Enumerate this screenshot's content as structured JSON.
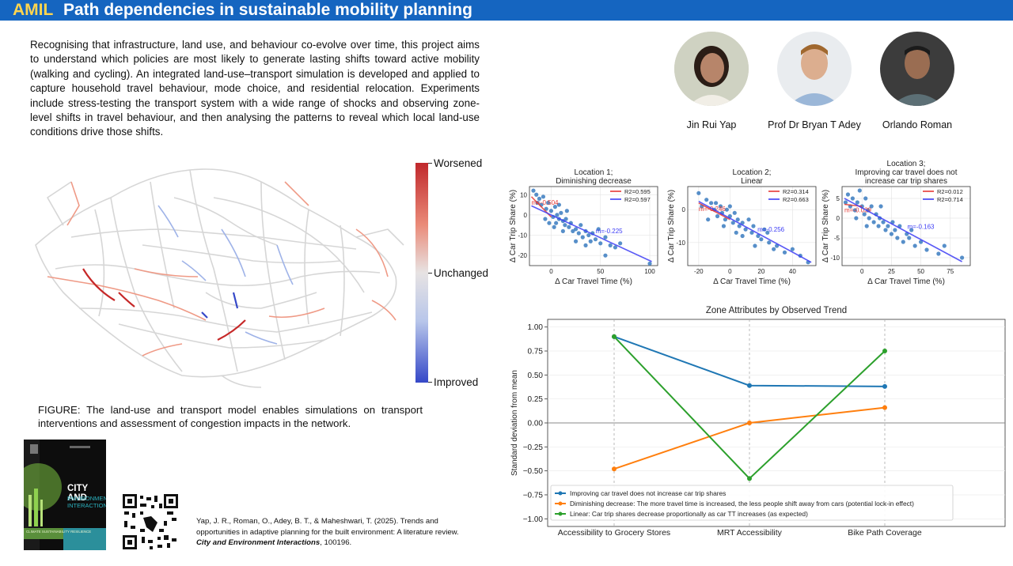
{
  "header": {
    "brand": "AMIL",
    "title": "Path dependencies in sustainable mobility planning"
  },
  "intro": "Recognising that infrastructure, land use, and behaviour co-evolve over time, this project aims to understand which policies are most likely to generate lasting shifts toward active mobility (walking and cycling). An integrated land-use–transport simulation is developed and applied to capture household travel behaviour, mode choice, and residential relocation. Experiments include stress-testing the transport system with a wide range of shocks and observing zone-level shifts in travel behaviour, and then analysing the patterns to reveal which local land-use conditions drive those shifts.",
  "people": [
    {
      "name": "Jin Rui Yap"
    },
    {
      "name": "Prof Dr Bryan T Adey"
    },
    {
      "name": "Orlando Roman"
    }
  ],
  "map_legend": {
    "top": "Worsened",
    "middle": "Unchanged",
    "bottom": "Improved"
  },
  "caption": "FIGURE: The land-use and transport model enables simulations on transport interventions and assessment of congestion impacts in the network.",
  "cover": {
    "title1": "CITY AND",
    "title2": "ENVIRONMENT",
    "title3": "INTERACTIONS",
    "footer": "CLIMATE  SUSTAINABILITY  RESILIENCE"
  },
  "reference": {
    "text": "Yap, J. R., Roman, O., Adey, B. T., & Maheshwari, T. (2025). Trends and opportunities in adaptive planning for the built environment: A literature review.",
    "journal": "City and Environment Interactions",
    "tail": ", 100196."
  },
  "chart_data": [
    {
      "type": "scatter",
      "title": "Location 1;\nDiminishing decrease",
      "xlabel": "Δ Car Travel Time (%)",
      "ylabel": "Δ Car Trip Share (%)",
      "xlim": [
        -22,
        108
      ],
      "ylim": [
        -25,
        14
      ],
      "xticks": [
        0,
        50,
        100
      ],
      "yticks": [
        10,
        0,
        -10,
        -20
      ],
      "series": [
        {
          "name": "R2=0.595",
          "color": "#e53935",
          "slope_label": "m=-0.504",
          "line": [
            [
              -20,
              9
            ],
            [
              0,
              -1
            ]
          ]
        },
        {
          "name": "R2=0.597",
          "color": "#3d3df5",
          "slope_label": "m=-0.225",
          "line": [
            [
              -20,
              4.5
            ],
            [
              102,
              -23
            ]
          ]
        }
      ],
      "points": [
        [
          -18,
          12
        ],
        [
          -15,
          10
        ],
        [
          -12,
          8
        ],
        [
          -14,
          6
        ],
        [
          -10,
          5
        ],
        [
          -8,
          9
        ],
        [
          -5,
          3
        ],
        [
          -3,
          6
        ],
        [
          0,
          2
        ],
        [
          2,
          -1
        ],
        [
          4,
          4
        ],
        [
          6,
          0
        ],
        [
          8,
          -2
        ],
        [
          10,
          1
        ],
        [
          12,
          -3
        ],
        [
          14,
          -5
        ],
        [
          5,
          -4
        ],
        [
          15,
          -2
        ],
        [
          18,
          -6
        ],
        [
          20,
          -4
        ],
        [
          22,
          -8
        ],
        [
          25,
          -7
        ],
        [
          28,
          -9
        ],
        [
          30,
          -5
        ],
        [
          32,
          -11
        ],
        [
          35,
          -8
        ],
        [
          38,
          -10
        ],
        [
          40,
          -13
        ],
        [
          42,
          -9
        ],
        [
          45,
          -12
        ],
        [
          48,
          -7
        ],
        [
          50,
          -14
        ],
        [
          55,
          -11
        ],
        [
          60,
          -15
        ],
        [
          65,
          -16
        ],
        [
          70,
          -14
        ],
        [
          -6,
          -2
        ],
        [
          3,
          -6
        ],
        [
          12,
          -8
        ],
        [
          25,
          -13
        ],
        [
          100,
          -24
        ],
        [
          55,
          -20
        ],
        [
          35,
          -15
        ],
        [
          -2,
          -4
        ],
        [
          16,
          2
        ],
        [
          8,
          5
        ]
      ]
    },
    {
      "type": "scatter",
      "title": "Location 2;\nLinear",
      "xlabel": "Δ Car Travel Time (%)",
      "ylabel": "Δ Car Trip Share (%)",
      "xlim": [
        -27,
        55
      ],
      "ylim": [
        -17,
        7
      ],
      "xticks": [
        -20,
        0,
        20,
        40
      ],
      "yticks": [
        0,
        -10
      ],
      "series": [
        {
          "name": "R2=0.314",
          "color": "#e53935",
          "slope_label": "m=-0.246",
          "line": [
            [
              -20,
              2
            ],
            [
              0,
              -3
            ]
          ]
        },
        {
          "name": "R2=0.663",
          "color": "#3d3df5",
          "slope_label": "m=-0.256",
          "line": [
            [
              -20,
              2.5
            ],
            [
              52,
              -16
            ]
          ]
        }
      ],
      "points": [
        [
          -20,
          5
        ],
        [
          -18,
          1
        ],
        [
          -15,
          3
        ],
        [
          -12,
          2
        ],
        [
          -10,
          0
        ],
        [
          -8,
          -2
        ],
        [
          -6,
          1
        ],
        [
          -5,
          -1
        ],
        [
          -3,
          -3
        ],
        [
          -2,
          0
        ],
        [
          0,
          -2
        ],
        [
          2,
          -4
        ],
        [
          3,
          -1
        ],
        [
          5,
          -3
        ],
        [
          6,
          -5
        ],
        [
          8,
          -4
        ],
        [
          10,
          -6
        ],
        [
          12,
          -3
        ],
        [
          14,
          -7
        ],
        [
          15,
          -5
        ],
        [
          18,
          -8
        ],
        [
          20,
          -9
        ],
        [
          22,
          -6
        ],
        [
          25,
          -10
        ],
        [
          28,
          -12
        ],
        [
          30,
          -11
        ],
        [
          35,
          -13
        ],
        [
          40,
          -12
        ],
        [
          45,
          -14
        ],
        [
          -14,
          -3
        ],
        [
          -9,
          2
        ],
        [
          4,
          -7
        ],
        [
          16,
          -11
        ],
        [
          24,
          -7
        ],
        [
          0,
          1
        ],
        [
          8,
          -8
        ],
        [
          -4,
          -5
        ],
        [
          50,
          -16
        ]
      ]
    },
    {
      "type": "scatter",
      "title": "Location 3;\nImproving car travel does not\nincrease car trip shares",
      "xlabel": "Δ Car Travel Time (%)",
      "ylabel": "Δ Car Trip Share (%)",
      "xlim": [
        -17,
        92
      ],
      "ylim": [
        -12,
        8
      ],
      "xticks": [
        0,
        25,
        50,
        75
      ],
      "yticks": [
        5,
        0,
        -5,
        -10
      ],
      "series": [
        {
          "name": "R2=0.012",
          "color": "#e53935",
          "slope_label": "m=-0.039",
          "line": [
            [
              -15,
              3.5
            ],
            [
              0,
              3
            ]
          ]
        },
        {
          "name": "R2=0.714",
          "color": "#3d3df5",
          "slope_label": "m=-0.163",
          "line": [
            [
              -15,
              5
            ],
            [
              85,
              -11
            ]
          ]
        }
      ],
      "points": [
        [
          -14,
          4
        ],
        [
          -12,
          6
        ],
        [
          -10,
          3
        ],
        [
          -8,
          5
        ],
        [
          -6,
          2
        ],
        [
          -4,
          4
        ],
        [
          -2,
          7
        ],
        [
          0,
          3
        ],
        [
          2,
          1
        ],
        [
          3,
          5
        ],
        [
          5,
          2
        ],
        [
          6,
          0
        ],
        [
          8,
          3
        ],
        [
          10,
          -1
        ],
        [
          12,
          1
        ],
        [
          14,
          -2
        ],
        [
          15,
          0
        ],
        [
          18,
          -1
        ],
        [
          20,
          -3
        ],
        [
          22,
          -2
        ],
        [
          25,
          -4
        ],
        [
          28,
          -3
        ],
        [
          30,
          -5
        ],
        [
          32,
          -2
        ],
        [
          35,
          -6
        ],
        [
          38,
          -4
        ],
        [
          40,
          -5
        ],
        [
          45,
          -7
        ],
        [
          50,
          -6
        ],
        [
          55,
          -8
        ],
        [
          65,
          -9
        ],
        [
          70,
          -7
        ],
        [
          85,
          -10
        ],
        [
          4,
          -2
        ],
        [
          16,
          3
        ],
        [
          26,
          -1
        ],
        [
          -5,
          0
        ],
        [
          42,
          -3
        ]
      ]
    },
    {
      "type": "line",
      "title": "Zone Attributes by Observed Trend",
      "ylabel": "Standard deviation from mean",
      "categories": [
        "Accessibility to Grocery Stores",
        "MRT Accessibility",
        "Bike Path Coverage"
      ],
      "ylim": [
        -1.08,
        1.08
      ],
      "yticks": [
        1.0,
        0.75,
        0.5,
        0.25,
        0.0,
        -0.25,
        -0.5,
        -0.75,
        -1.0
      ],
      "ytick_labels": [
        "1.00",
        "0.75",
        "0.50",
        "0.25",
        "0.00",
        "−0.25",
        "−0.50",
        "−0.75",
        "−1.00"
      ],
      "series": [
        {
          "name": "Improving car travel does not increase car trip shares",
          "color": "#1f77b4",
          "values": [
            0.9,
            0.39,
            0.38
          ]
        },
        {
          "name": "Diminishing decrease: The more travel time is increased, the less people shift away from cars (potential lock-in effect)",
          "color": "#ff7f0e",
          "values": [
            -0.48,
            0.0,
            0.16
          ]
        },
        {
          "name": "Linear: Car trip shares decrease proportionally as car TT increases (as expected)",
          "color": "#2ca02c",
          "values": [
            0.9,
            -0.58,
            0.75
          ]
        }
      ]
    }
  ]
}
